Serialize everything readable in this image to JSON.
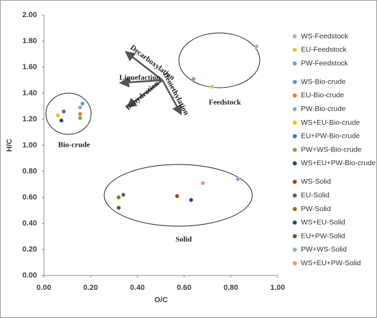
{
  "chart_data": {
    "type": "scatter",
    "xlabel": "O/C",
    "ylabel": "H/C",
    "xlim": [
      0,
      1
    ],
    "ylim": [
      0,
      2
    ],
    "xticks": [
      {
        "value": 0,
        "label": "0.00"
      },
      {
        "value": 0.2,
        "label": "0.20"
      },
      {
        "value": 0.4,
        "label": "0.40"
      },
      {
        "value": 0.6,
        "label": "0.60"
      },
      {
        "value": 0.8,
        "label": "0.80"
      },
      {
        "value": 1,
        "label": "1.00"
      }
    ],
    "yticks": [
      {
        "value": 0,
        "label": "0.00"
      },
      {
        "value": 0.2,
        "label": "0.20"
      },
      {
        "value": 0.4,
        "label": "0.40"
      },
      {
        "value": 0.6,
        "label": "0.60"
      },
      {
        "value": 0.8,
        "label": "0.80"
      },
      {
        "value": 1,
        "label": "1.00"
      },
      {
        "value": 1.2,
        "label": "1.20"
      },
      {
        "value": 1.4,
        "label": "1.40"
      },
      {
        "value": 1.6,
        "label": "1.60"
      },
      {
        "value": 1.8,
        "label": "1.80"
      },
      {
        "value": 2,
        "label": "2.00"
      }
    ],
    "annotations": [
      "Bio-crude",
      "Feedstock",
      "Solid",
      "Decarboxylation",
      "Liquefaction",
      "Dehydration",
      "Demethylation"
    ],
    "series": [
      {
        "name": "WS-Feedstock",
        "color": "#b3b3b3",
        "x": [
          0.91
        ],
        "values": [
          1.76
        ]
      },
      {
        "name": "EU-Feedstock",
        "color": "#f2c12e",
        "x": [
          0.72
        ],
        "values": [
          1.45
        ]
      },
      {
        "name": "PW-Feedstock",
        "color": "#7b9bcc",
        "x": [
          0.64
        ],
        "values": [
          1.51
        ]
      },
      {
        "name": "WS-Bio-crude",
        "color": "#5b9bd5",
        "x": [
          0.165
        ],
        "values": [
          1.32
        ]
      },
      {
        "name": "EU-Bio-crude",
        "color": "#ed7d31",
        "x": [
          0.155
        ],
        "values": [
          1.24
        ]
      },
      {
        "name": "PW-Bio-crude",
        "color": "#a5a5a5",
        "x": [
          0.155
        ],
        "values": [
          1.29
        ]
      },
      {
        "name": "WS+EU-Bio-crude",
        "color": "#ffc000",
        "x": [
          0.06
        ],
        "values": [
          1.23
        ]
      },
      {
        "name": "EU+PW-Bio-crude",
        "color": "#4472c4",
        "x": [
          0.085
        ],
        "values": [
          1.26
        ]
      },
      {
        "name": "PW+WS-Bio-crude",
        "color": "#70ad47",
        "x": [
          0.155
        ],
        "values": [
          1.21
        ]
      },
      {
        "name": "WS+EU+PW-Bio-crude",
        "color": "#264478",
        "x": [
          0.075
        ],
        "values": [
          1.19
        ]
      },
      {
        "name": "WS-Solid",
        "color": "#9e480e",
        "x": [
          0.57
        ],
        "values": [
          0.61
        ]
      },
      {
        "name": "EU-Solid",
        "color": "#636363",
        "x": [
          0.34
        ],
        "values": [
          0.62
        ]
      },
      {
        "name": "PW-Solid",
        "color": "#997300",
        "x": [
          0.32
        ],
        "values": [
          0.6
        ]
      },
      {
        "name": "WS+EU-Solid",
        "color": "#264478",
        "x": [
          0.63
        ],
        "values": [
          0.58
        ]
      },
      {
        "name": "EU+PW-Solid",
        "color": "#43682b",
        "x": [
          0.32
        ],
        "values": [
          0.52
        ]
      },
      {
        "name": "PW+WS-Solid",
        "color": "#7cafdd",
        "x": [
          0.83
        ],
        "values": [
          0.74
        ]
      },
      {
        "name": "WS+EU+PW-Solid",
        "color": "#f1975a",
        "x": [
          0.68
        ],
        "values": [
          0.71
        ]
      }
    ]
  }
}
